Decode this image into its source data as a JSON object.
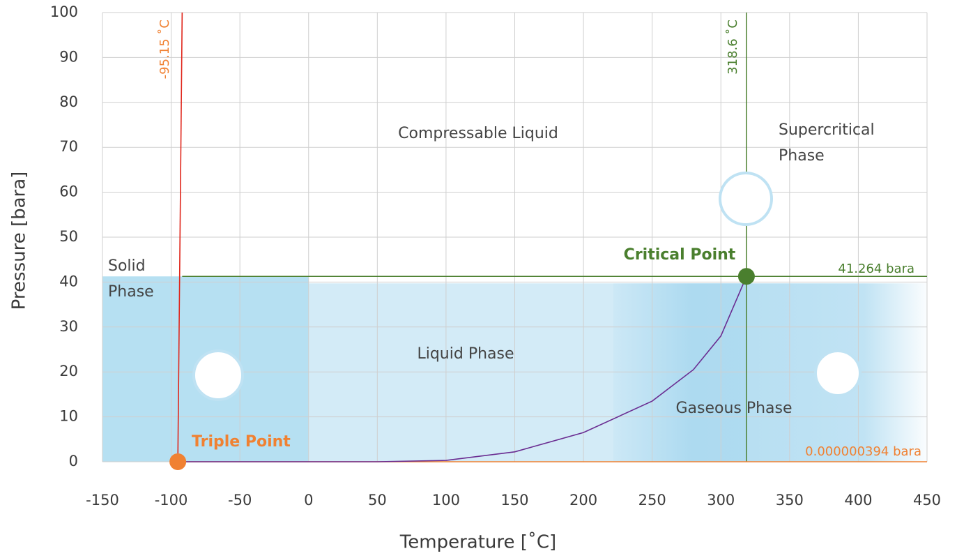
{
  "chart_data": {
    "type": "line",
    "x_label": "Temperature [˚C]",
    "y_label": "Pressure [bara]",
    "xlim": [
      -150,
      450
    ],
    "ylim": [
      0,
      100
    ],
    "xticks": [
      -150,
      -100,
      -50,
      0,
      50,
      100,
      150,
      200,
      250,
      300,
      350,
      400,
      450
    ],
    "yticks": [
      0,
      10,
      20,
      30,
      40,
      50,
      60,
      70,
      80,
      90,
      100
    ],
    "grid": true,
    "series": [
      {
        "color": "#e0261b",
        "x": [
          -95.15,
          -92
        ],
        "values": [
          0,
          100
        ]
      },
      {
        "color": "#6a2c91",
        "x": [
          -95.15,
          0,
          50,
          100,
          150,
          200,
          250,
          280,
          300,
          318.6
        ],
        "values": [
          0,
          0,
          0,
          0.3,
          2.2,
          6.5,
          13.5,
          20.5,
          28,
          41.264
        ]
      }
    ],
    "points": [
      {
        "label": "Triple Point",
        "x": -95.15,
        "y": 3.94e-07,
        "color": "#f08132"
      },
      {
        "label": "Critical Point",
        "x": 318.6,
        "y": 41.264,
        "color": "#4a7f2e"
      }
    ],
    "reference_lines": [
      {
        "orientation": "vertical",
        "value": 318.6,
        "label": "318.6 ˚C",
        "color": "#4a7f2e"
      },
      {
        "orientation": "horizontal",
        "value": 41.264,
        "label": "41.264 bara",
        "color": "#4a7f2e"
      },
      {
        "orientation": "horizontal",
        "value": 3.94e-07,
        "label": "0.000000394 bara",
        "color": "#f08132"
      }
    ],
    "temperature_note": "-95.15 ˚C",
    "regions": [
      {
        "lines": [
          "Solid",
          "Phase"
        ]
      },
      {
        "lines": [
          "Liquid Phase"
        ]
      },
      {
        "lines": [
          "Gaseous Phase"
        ]
      },
      {
        "lines": [
          "Compressable Liquid"
        ]
      },
      {
        "lines": [
          "Supercritical",
          "Phase"
        ]
      }
    ]
  }
}
